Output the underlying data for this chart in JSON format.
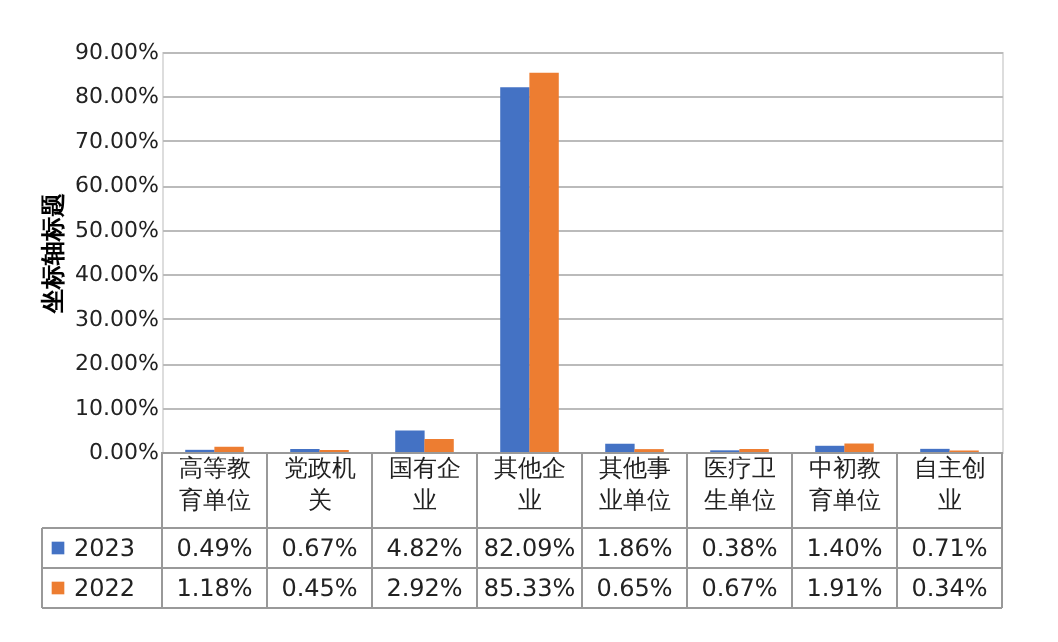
{
  "chart_data": {
    "type": "bar",
    "ylabel": "坐标轴标题",
    "categories": [
      "高等教育单位",
      "党政机关",
      "国有企业",
      "其他企业",
      "其他事业单位",
      "医疗卫生单位",
      "中初教育单位",
      "自主创业"
    ],
    "series": [
      {
        "name": "2023",
        "color": "#4472c4",
        "values": [
          0.49,
          0.67,
          4.82,
          82.09,
          1.86,
          0.38,
          1.4,
          0.71
        ],
        "value_labels": [
          "0.49%",
          "0.67%",
          "4.82%",
          "82.09%",
          "1.86%",
          "0.38%",
          "1.40%",
          "0.71%"
        ]
      },
      {
        "name": "2022",
        "color": "#ed7d31",
        "values": [
          1.18,
          0.45,
          2.92,
          85.33,
          0.65,
          0.67,
          1.91,
          0.34
        ],
        "value_labels": [
          "1.18%",
          "0.45%",
          "2.92%",
          "85.33%",
          "0.65%",
          "0.67%",
          "1.91%",
          "0.34%"
        ]
      }
    ],
    "ylim": [
      0,
      90
    ],
    "yticks": [
      {
        "value": 0,
        "label": "0.00%"
      },
      {
        "value": 10,
        "label": "10.00%"
      },
      {
        "value": 20,
        "label": "20.00%"
      },
      {
        "value": 30,
        "label": "30.00%"
      },
      {
        "value": 40,
        "label": "40.00%"
      },
      {
        "value": 50,
        "label": "50.00%"
      },
      {
        "value": 60,
        "label": "60.00%"
      },
      {
        "value": 70,
        "label": "70.00%"
      },
      {
        "value": 80,
        "label": "80.00%"
      },
      {
        "value": 90,
        "label": "90.00%"
      }
    ],
    "grid": "y",
    "legend": "bottom",
    "data_labels": true
  }
}
